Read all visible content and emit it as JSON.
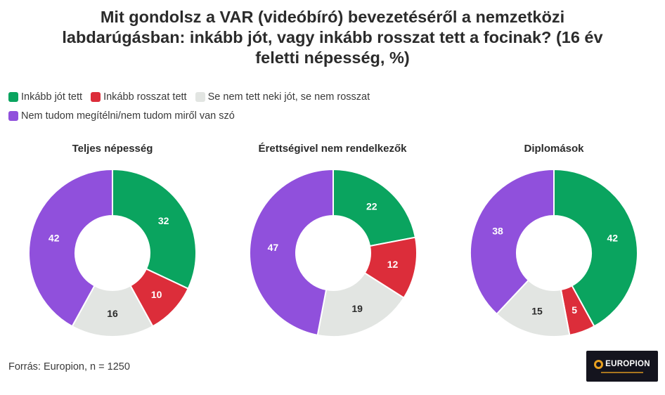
{
  "title": "Mit gondolsz a VAR (videóbíró) bevezetéséről a nemzetközi labdarúgásban: inkább jót, vagy inkább rosszat tett a focinak? (16 év feletti népesség, %)",
  "legend": [
    {
      "label": "Inkább jót tett",
      "color": "#0aa45f"
    },
    {
      "label": "Inkább rosszat tett",
      "color": "#dc2d3a"
    },
    {
      "label": "Se nem tett neki jót, se nem rosszat",
      "color": "#e2e5e2"
    },
    {
      "label": "Nem tudom megítélni/nem tudom miről van szó",
      "color": "#9050dc"
    }
  ],
  "chart_data": [
    {
      "type": "pie",
      "title": "Teljes népesség",
      "categories": [
        "Inkább jót tett",
        "Inkább rosszat tett",
        "Se nem tett neki jót, se nem rosszat",
        "Nem tudom megítélni/nem tudom miről van szó"
      ],
      "values": [
        32,
        10,
        16,
        42
      ],
      "colors": [
        "#0aa45f",
        "#dc2d3a",
        "#e2e5e2",
        "#9050dc"
      ]
    },
    {
      "type": "pie",
      "title": "Érettségivel nem rendelkezők",
      "categories": [
        "Inkább jót tett",
        "Inkább rosszat tett",
        "Se nem tett neki jót, se nem rosszat",
        "Nem tudom megítélni/nem tudom miről van szó"
      ],
      "values": [
        22,
        12,
        19,
        47
      ],
      "colors": [
        "#0aa45f",
        "#dc2d3a",
        "#e2e5e2",
        "#9050dc"
      ]
    },
    {
      "type": "pie",
      "title": "Diplomások",
      "categories": [
        "Inkább jót tett",
        "Inkább rosszat tett",
        "Se nem tett neki jót, se nem rosszat",
        "Nem tudom megítélni/nem tudom miről van szó"
      ],
      "values": [
        42,
        5,
        15,
        38
      ],
      "colors": [
        "#0aa45f",
        "#dc2d3a",
        "#e2e5e2",
        "#9050dc"
      ]
    }
  ],
  "source": "Forrás: Europion, n = 1250",
  "logo": {
    "text": "EUROPION"
  }
}
